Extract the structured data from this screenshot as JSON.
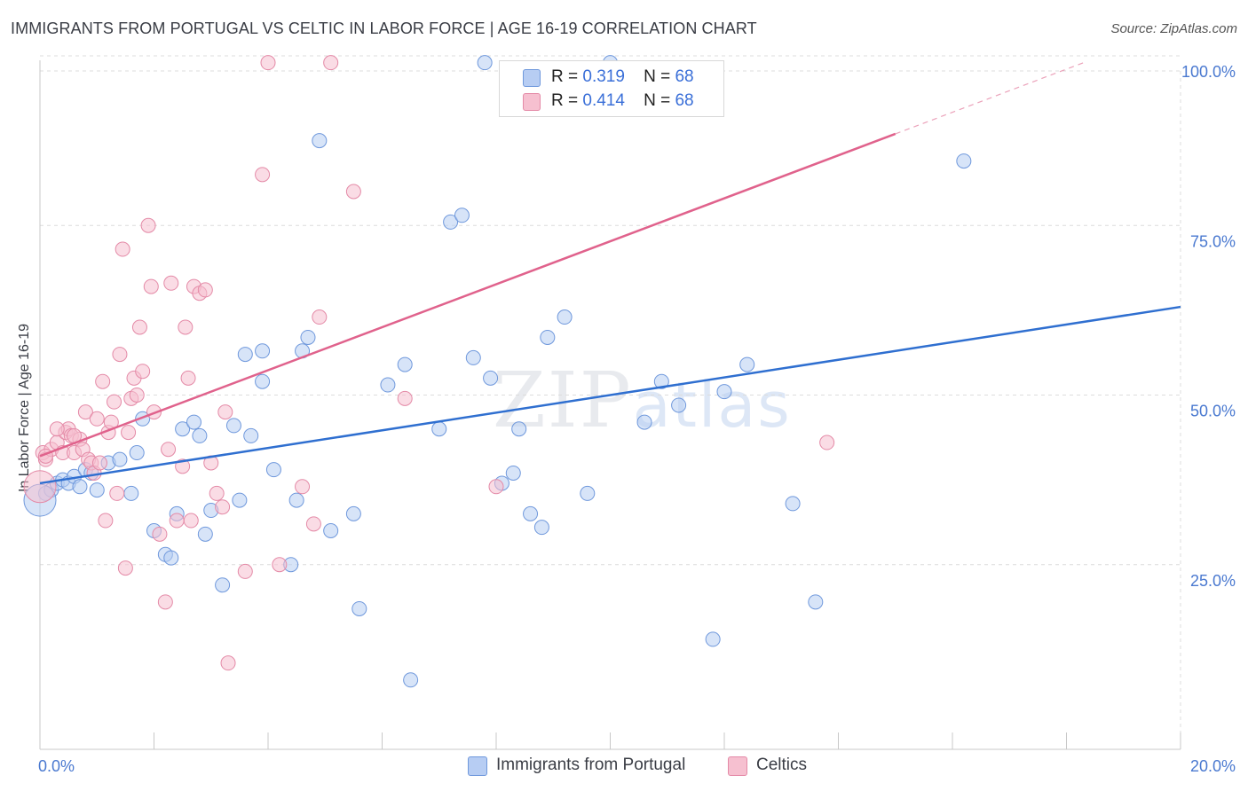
{
  "title": "IMMIGRANTS FROM PORTUGAL VS CELTIC IN LABOR FORCE | AGE 16-19 CORRELATION CHART",
  "source": "Source: ZipAtlas.com",
  "watermark": {
    "zip": "ZIP",
    "atlas": "atlas"
  },
  "colors": {
    "blue_fill": "#b7cdf3",
    "blue_stroke": "#6f98dc",
    "blue_line": "#2f6fd0",
    "pink_fill": "#f6c0d0",
    "pink_stroke": "#e48aa7",
    "pink_line": "#e0628c",
    "grid": "#dcdcdc",
    "tick_text": "#4a79d0"
  },
  "legend": {
    "series": [
      {
        "r_label": "R =",
        "r_value": "0.319",
        "n_label": "N =",
        "n_value": "68"
      },
      {
        "r_label": "R =",
        "r_value": "0.414",
        "n_label": "N =",
        "n_value": "68"
      }
    ]
  },
  "bottom_legend": {
    "items": [
      {
        "label": "Immigrants from Portugal"
      },
      {
        "label": "Celtics"
      }
    ]
  },
  "chart_data": {
    "type": "scatter",
    "title": "IMMIGRANTS FROM PORTUGAL VS CELTIC IN LABOR FORCE | AGE 16-19 CORRELATION CHART",
    "xlabel": "",
    "ylabel": "In Labor Force | Age 16-19",
    "xlim": [
      0,
      20
    ],
    "ylim": [
      0,
      100
    ],
    "x_tick_labels": {
      "0": "0.0%",
      "20": "20.0%"
    },
    "y_tick_labels": {
      "25": "25.0%",
      "50": "50.0%",
      "75": "75.0%",
      "100": "100.0%"
    },
    "series": [
      {
        "name": "Immigrants from Portugal",
        "r": 0.319,
        "n": 68,
        "trend": {
          "x0": 0,
          "y0": 37.0,
          "x1": 20,
          "y1": 63.0
        },
        "points": [
          [
            0.1,
            35.5
          ],
          [
            0.2,
            36.0
          ],
          [
            0.3,
            37.0
          ],
          [
            0.4,
            37.5
          ],
          [
            0.5,
            37.0
          ],
          [
            0.6,
            38.0
          ],
          [
            0.7,
            36.5
          ],
          [
            0.8,
            39.0
          ],
          [
            0.9,
            38.5
          ],
          [
            1.0,
            36.0
          ],
          [
            1.2,
            40.0
          ],
          [
            1.4,
            40.5
          ],
          [
            1.6,
            35.5
          ],
          [
            1.7,
            41.5
          ],
          [
            1.8,
            46.5
          ],
          [
            2.0,
            30.0
          ],
          [
            2.2,
            26.5
          ],
          [
            2.3,
            26.0
          ],
          [
            2.4,
            32.5
          ],
          [
            2.5,
            45.0
          ],
          [
            2.7,
            46.0
          ],
          [
            2.8,
            44.0
          ],
          [
            2.9,
            29.5
          ],
          [
            3.0,
            33.0
          ],
          [
            3.2,
            22.0
          ],
          [
            3.4,
            45.5
          ],
          [
            3.5,
            34.5
          ],
          [
            3.6,
            56.0
          ],
          [
            3.7,
            44.0
          ],
          [
            3.9,
            56.5
          ],
          [
            3.9,
            52.0
          ],
          [
            4.1,
            39.0
          ],
          [
            4.4,
            25.0
          ],
          [
            4.5,
            34.5
          ],
          [
            4.6,
            56.5
          ],
          [
            4.7,
            58.5
          ],
          [
            4.9,
            87.5
          ],
          [
            5.1,
            30.0
          ],
          [
            5.5,
            32.5
          ],
          [
            5.6,
            18.5
          ],
          [
            6.1,
            51.5
          ],
          [
            6.4,
            54.5
          ],
          [
            6.5,
            8.0
          ],
          [
            7.0,
            45.0
          ],
          [
            7.2,
            75.5
          ],
          [
            7.4,
            76.5
          ],
          [
            7.6,
            55.5
          ],
          [
            7.8,
            99.0
          ],
          [
            7.9,
            52.5
          ],
          [
            8.1,
            37.0
          ],
          [
            8.3,
            38.5
          ],
          [
            8.4,
            45.0
          ],
          [
            8.6,
            32.5
          ],
          [
            8.8,
            30.5
          ],
          [
            8.9,
            58.5
          ],
          [
            9.2,
            61.5
          ],
          [
            9.6,
            35.5
          ],
          [
            10.0,
            99.0
          ],
          [
            10.6,
            46.0
          ],
          [
            10.9,
            52.0
          ],
          [
            11.2,
            48.5
          ],
          [
            11.8,
            14.0
          ],
          [
            12.0,
            50.5
          ],
          [
            12.4,
            54.5
          ],
          [
            13.2,
            34.0
          ],
          [
            13.6,
            19.5
          ],
          [
            16.2,
            84.5
          ],
          [
            0.0,
            34.5
          ]
        ]
      },
      {
        "name": "Celtics",
        "r": 0.414,
        "n": 68,
        "trend": {
          "x0": 0,
          "y0": 41.0,
          "x1": 15,
          "y1": 88.5
        },
        "trend_dashed": {
          "x0": 15,
          "y0": 88.5,
          "x1": 18.3,
          "y1": 99.0
        },
        "points": [
          [
            0.0,
            36.5
          ],
          [
            0.05,
            41.5
          ],
          [
            0.1,
            40.5
          ],
          [
            0.2,
            42.0
          ],
          [
            0.3,
            43.0
          ],
          [
            0.4,
            41.5
          ],
          [
            0.45,
            44.5
          ],
          [
            0.5,
            45.0
          ],
          [
            0.55,
            44.0
          ],
          [
            0.6,
            41.5
          ],
          [
            0.7,
            43.5
          ],
          [
            0.75,
            42.0
          ],
          [
            0.8,
            47.5
          ],
          [
            0.85,
            40.5
          ],
          [
            0.9,
            40.0
          ],
          [
            0.95,
            38.5
          ],
          [
            1.0,
            46.5
          ],
          [
            1.05,
            40.0
          ],
          [
            1.1,
            52.0
          ],
          [
            1.15,
            31.5
          ],
          [
            1.2,
            44.5
          ],
          [
            1.25,
            46.0
          ],
          [
            1.3,
            49.0
          ],
          [
            1.35,
            35.5
          ],
          [
            1.4,
            56.0
          ],
          [
            1.45,
            71.5
          ],
          [
            1.5,
            24.5
          ],
          [
            1.55,
            44.5
          ],
          [
            1.6,
            49.5
          ],
          [
            1.65,
            52.5
          ],
          [
            1.7,
            50.0
          ],
          [
            1.75,
            60.0
          ],
          [
            1.8,
            53.5
          ],
          [
            1.9,
            75.0
          ],
          [
            1.95,
            66.0
          ],
          [
            2.0,
            47.5
          ],
          [
            2.1,
            29.5
          ],
          [
            2.2,
            19.5
          ],
          [
            2.25,
            42.0
          ],
          [
            2.3,
            66.5
          ],
          [
            2.4,
            31.5
          ],
          [
            2.5,
            39.5
          ],
          [
            2.55,
            60.0
          ],
          [
            2.6,
            52.5
          ],
          [
            2.65,
            31.5
          ],
          [
            2.7,
            66.0
          ],
          [
            2.8,
            65.0
          ],
          [
            2.9,
            65.5
          ],
          [
            3.0,
            40.0
          ],
          [
            3.1,
            35.5
          ],
          [
            3.2,
            33.5
          ],
          [
            3.25,
            47.5
          ],
          [
            3.3,
            10.5
          ],
          [
            3.6,
            24.0
          ],
          [
            3.9,
            82.5
          ],
          [
            4.0,
            99.0
          ],
          [
            4.2,
            25.0
          ],
          [
            4.6,
            36.5
          ],
          [
            4.8,
            31.0
          ],
          [
            4.9,
            61.5
          ],
          [
            5.1,
            99.0
          ],
          [
            5.5,
            80.0
          ],
          [
            6.4,
            49.5
          ],
          [
            8.0,
            36.5
          ],
          [
            13.8,
            43.0
          ],
          [
            0.1,
            41.0
          ],
          [
            0.3,
            45.0
          ],
          [
            0.6,
            44.0
          ]
        ]
      }
    ],
    "grid": true,
    "legend": "top-center"
  }
}
